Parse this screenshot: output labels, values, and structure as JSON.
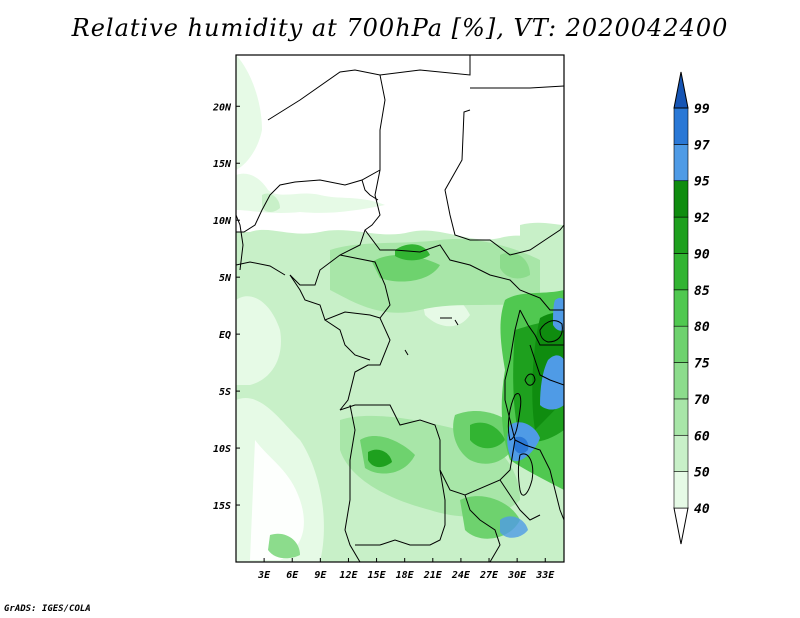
{
  "title": "Relative humidity at 700hPa [%], VT: 2020042400",
  "credit": "GrADS: IGES/COLA",
  "map": {
    "lon_range": [
      0,
      35
    ],
    "lat_range": [
      -20,
      24.5
    ],
    "x_ticks": [
      {
        "value": 3,
        "label": "3E"
      },
      {
        "value": 6,
        "label": "6E"
      },
      {
        "value": 9,
        "label": "9E"
      },
      {
        "value": 12,
        "label": "12E"
      },
      {
        "value": 15,
        "label": "15E"
      },
      {
        "value": 18,
        "label": "18E"
      },
      {
        "value": 21,
        "label": "21E"
      },
      {
        "value": 24,
        "label": "24E"
      },
      {
        "value": 27,
        "label": "27E"
      },
      {
        "value": 30,
        "label": "30E"
      },
      {
        "value": 33,
        "label": "33E"
      }
    ],
    "y_ticks": [
      {
        "value": 20,
        "label": "20N"
      },
      {
        "value": 15,
        "label": "15N"
      },
      {
        "value": 10,
        "label": "10N"
      },
      {
        "value": 5,
        "label": "5N"
      },
      {
        "value": 0,
        "label": "EQ"
      },
      {
        "value": -5,
        "label": "5S"
      },
      {
        "value": -10,
        "label": "10S"
      },
      {
        "value": -15,
        "label": "15S"
      }
    ]
  },
  "colorbar": {
    "levels": [
      "40",
      "50",
      "60",
      "70",
      "75",
      "80",
      "85",
      "90",
      "92",
      "95",
      "97",
      "99"
    ],
    "colors": [
      "#ffffff",
      "#e6fae6",
      "#c8f0c8",
      "#a8e6a8",
      "#8cdc8c",
      "#6ed26e",
      "#50c850",
      "#32b432",
      "#1ea01e",
      "#0f8c0f",
      "#4f9be6",
      "#2a78d6",
      "#1655b4"
    ]
  },
  "chart_data": {
    "type": "heatmap",
    "title": "Relative humidity at 700hPa [%], VT: 2020042400",
    "units": "%",
    "contour_levels": [
      40,
      50,
      60,
      70,
      75,
      80,
      85,
      90,
      92,
      95,
      97,
      99
    ],
    "lon_range": [
      0,
      35
    ],
    "lat_range": [
      -20,
      24.5
    ],
    "regions": [
      {
        "lon_min": 0,
        "lon_max": 35,
        "lat_min": 12,
        "lat_max": 24.5,
        "rh_approx": 30
      },
      {
        "lon_min": 0,
        "lon_max": 35,
        "lat_min": -20,
        "lat_max": 12,
        "rh_approx": 65
      },
      {
        "lon_min": 30,
        "lon_max": 35,
        "lat_min": -10,
        "lat_max": 2,
        "rh_approx": 97
      },
      {
        "lon_min": 13,
        "lon_max": 18,
        "lat_min": -12,
        "lat_max": -9,
        "rh_approx": 90
      },
      {
        "lon_min": 5,
        "lon_max": 12,
        "lat_min": -20,
        "lat_max": -13,
        "rh_approx": 45
      }
    ]
  }
}
